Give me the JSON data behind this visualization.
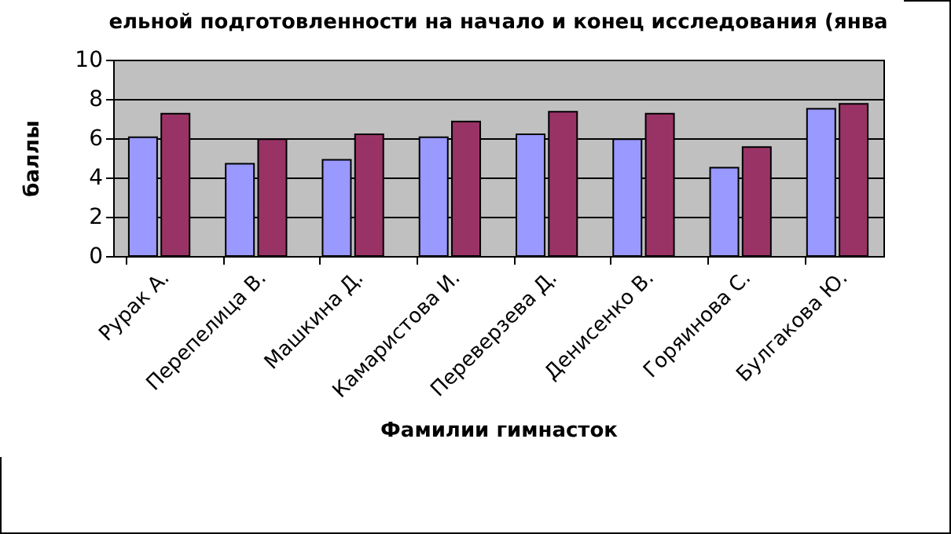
{
  "chart_data": {
    "type": "bar",
    "title": "ельной подготовленности на начало и конец исследования (янва",
    "xlabel": "Фамилии гимнасток",
    "ylabel": "баллы",
    "categories": [
      "Рурак А.",
      "Перепелица В.",
      "Машкина Д.",
      "Камаристова И.",
      "Переверзева Д.",
      "Денисенко В.",
      "Горяинова С.",
      "Булгакова Ю."
    ],
    "series": [
      {
        "color": "#9999ff",
        "values": [
          6.05,
          4.7,
          4.9,
          6.05,
          6.2,
          5.95,
          4.5,
          7.5
        ]
      },
      {
        "color": "#993366",
        "values": [
          7.25,
          5.95,
          6.2,
          6.85,
          7.35,
          7.25,
          5.55,
          7.75
        ]
      }
    ],
    "ylim": [
      0,
      10
    ],
    "yticks": [
      0,
      2,
      4,
      6,
      8,
      10
    ],
    "grid": "y",
    "legend": false
  }
}
